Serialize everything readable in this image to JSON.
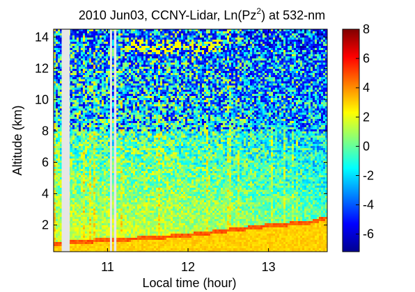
{
  "chart_data": {
    "type": "heatmap",
    "title": "2010 Jun03, CCNY-Lidar, Ln(Pz²) at 532-nm",
    "title_parts": {
      "pre": "2010 Jun03, CCNY-Lidar, Ln(Pz",
      "sup": "2",
      "post": ") at 532-nm"
    },
    "xlabel": "Local time (hour)",
    "ylabel": "Altitude (km)",
    "xlim": [
      10.33,
      13.73
    ],
    "ylim": [
      0.3,
      14.5
    ],
    "xticks": [
      "11",
      "12",
      "13"
    ],
    "xtick_values": [
      11,
      12,
      13
    ],
    "yticks": [
      "2",
      "4",
      "6",
      "8",
      "10",
      "12",
      "14"
    ],
    "ytick_values": [
      2,
      4,
      6,
      8,
      10,
      12,
      14
    ],
    "colorbar": {
      "range": [
        -7.2,
        8
      ],
      "ticks": [
        "8",
        "6",
        "4",
        "2",
        "0",
        "-2",
        "-4",
        "-6"
      ],
      "tick_values": [
        8,
        6,
        4,
        2,
        0,
        -2,
        -4,
        -6
      ],
      "colors": [
        "#00008f",
        "#0000ff",
        "#0080ff",
        "#00ffff",
        "#80ff80",
        "#ffff00",
        "#ff8000",
        "#ff0000",
        "#800000"
      ]
    },
    "data_gaps_hours": [
      [
        10.43,
        10.53
      ],
      [
        11.03,
        11.04
      ],
      [
        11.08,
        11.11
      ]
    ],
    "cloud_base_km": [
      {
        "t": 10.5,
        "z": 0.8
      },
      {
        "t": 11.0,
        "z": 1.0
      },
      {
        "t": 11.5,
        "z": 1.1
      },
      {
        "t": 12.0,
        "z": 1.3
      },
      {
        "t": 12.5,
        "z": 1.6
      },
      {
        "t": 13.0,
        "z": 1.9
      },
      {
        "t": 13.5,
        "z": 2.1
      },
      {
        "t": 13.7,
        "z": 2.4
      }
    ]
  }
}
